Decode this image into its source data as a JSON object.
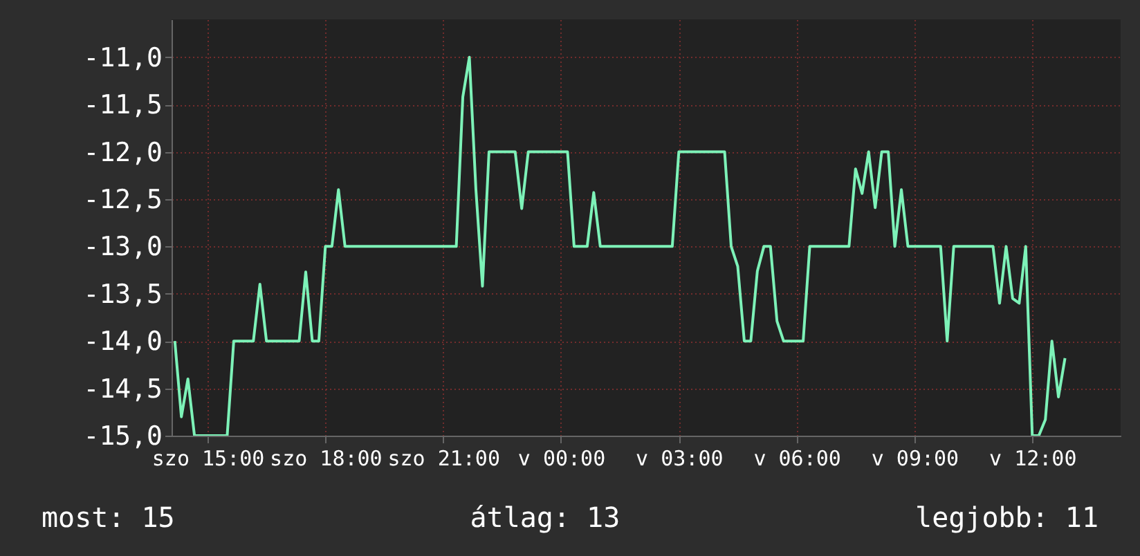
{
  "chart_data": {
    "type": "line",
    "categories": [
      null,
      null,
      null,
      null,
      null,
      "szo 15:00",
      null,
      null,
      null,
      null,
      null,
      null,
      null,
      null,
      null,
      null,
      null,
      null,
      null,
      null,
      null,
      null,
      null,
      "szo 18:00",
      null,
      null,
      null,
      null,
      null,
      null,
      null,
      null,
      null,
      null,
      null,
      null,
      null,
      null,
      null,
      null,
      null,
      "szo 21:00",
      null,
      null,
      null,
      null,
      null,
      null,
      null,
      null,
      null,
      null,
      null,
      null,
      null,
      null,
      null,
      null,
      null,
      "v 00:00",
      null,
      null,
      null,
      null,
      null,
      null,
      null,
      null,
      null,
      null,
      null,
      null,
      null,
      null,
      null,
      null,
      null,
      "v 03:00",
      null,
      null,
      null,
      null,
      null,
      null,
      null,
      null,
      null,
      null,
      null,
      null,
      null,
      null,
      null,
      null,
      null,
      "v 06:00",
      null,
      null,
      null,
      null,
      null,
      null,
      null,
      null,
      null,
      null,
      null,
      null,
      null,
      null,
      null,
      null,
      null,
      "v 09:00",
      null,
      null,
      null,
      null,
      null,
      null,
      null,
      null,
      null,
      null,
      null,
      null,
      null,
      null,
      null,
      null,
      null,
      "v 12:00",
      null,
      null,
      null,
      null,
      null,
      null,
      null,
      null,
      null,
      null,
      null,
      null,
      null
    ],
    "series": [
      {
        "color": "#7df2b8",
        "values": [
          -14,
          -14.8,
          -14.4,
          -15,
          -15,
          -15,
          -15,
          -15,
          -15,
          -14,
          -14,
          -14,
          -14,
          -13.4,
          -14,
          -14,
          -14,
          -14,
          -14,
          -14,
          -13.27,
          -14,
          -14,
          -13,
          -13,
          -12.4,
          -13,
          -13,
          -13,
          -13,
          -13,
          -13,
          -13,
          -13,
          -13,
          -13,
          -13,
          -13,
          -13,
          -13,
          -13,
          -13,
          -13,
          -13,
          -11.42,
          -11,
          -12.4,
          -13.42,
          -12,
          -12,
          -12,
          -12,
          -12,
          -12.6,
          -12,
          -12,
          -12,
          -12,
          -12,
          -12,
          -12,
          -13,
          -13,
          -13,
          -12.43,
          -13,
          -13,
          -13,
          -13,
          -13,
          -13,
          -13,
          -13,
          -13,
          -13,
          -13,
          -13,
          -12,
          -12,
          -12,
          -12,
          -12,
          -12,
          -12,
          -12,
          -13,
          -13.21,
          -14,
          -14,
          -13.26,
          -13,
          -13,
          -13.79,
          -14,
          -14,
          -14,
          -14,
          -13,
          -13,
          -13,
          -13,
          -13,
          -13,
          -13,
          -12.18,
          -12.44,
          -12,
          -12.59,
          -12,
          -12,
          -13,
          -12.4,
          -13,
          -13,
          -13,
          -13,
          -13,
          -13,
          -14,
          -13,
          -13,
          -13,
          -13,
          -13,
          -13,
          -13,
          -13.6,
          -13,
          -13.55,
          -13.6,
          -13,
          -15,
          -15,
          -14.83,
          -14,
          -14.59,
          -14.18,
          null,
          null,
          null,
          null,
          null,
          null,
          null,
          null
        ]
      }
    ],
    "ylim": [
      -15,
      -10.6
    ],
    "yticks": [
      {
        "value": -15,
        "label": "-15,0"
      },
      {
        "value": -14.5,
        "label": "-14,5"
      },
      {
        "value": -14,
        "label": "-14,0"
      },
      {
        "value": -13.5,
        "label": "-13,5"
      },
      {
        "value": -13,
        "label": "-13,0"
      },
      {
        "value": -12.5,
        "label": "-12,5"
      },
      {
        "value": -12,
        "label": "-12,0"
      },
      {
        "value": -11.5,
        "label": "-11,5"
      },
      {
        "value": -11,
        "label": "-11,0"
      }
    ],
    "grid": true,
    "annotations": [
      "most: 15",
      "átlag: 13",
      "legjobb: 11"
    ]
  }
}
